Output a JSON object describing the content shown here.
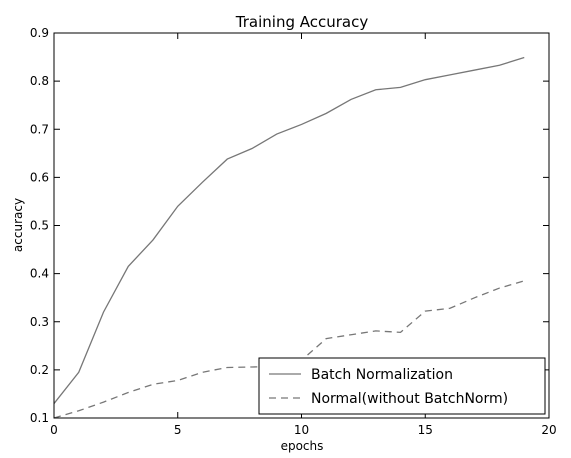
{
  "chart_data": {
    "type": "line",
    "title": "Training Accuracy",
    "xlabel": "epochs",
    "ylabel": "accuracy",
    "xlim": [
      0,
      20
    ],
    "ylim": [
      0.1,
      0.9
    ],
    "xticks": [
      0,
      5,
      10,
      15,
      20
    ],
    "xtick_labels": [
      "0",
      "5",
      "10",
      "15",
      "20"
    ],
    "yticks": [
      0.1,
      0.2,
      0.3,
      0.4,
      0.5,
      0.6,
      0.7,
      0.8,
      0.9
    ],
    "ytick_labels": [
      "0.1",
      "0.2",
      "0.3",
      "0.4",
      "0.5",
      "0.6",
      "0.7",
      "0.8",
      "0.9"
    ],
    "grid": false,
    "legend_position": "bottom-right",
    "x": [
      0,
      1,
      2,
      3,
      4,
      5,
      6,
      7,
      8,
      9,
      10,
      11,
      12,
      13,
      14,
      15,
      16,
      17,
      18,
      19
    ],
    "series": [
      {
        "name": "Batch Normalization",
        "style": "solid",
        "color": "#777777",
        "values": [
          0.13,
          0.195,
          0.32,
          0.415,
          0.47,
          0.54,
          0.59,
          0.638,
          0.66,
          0.69,
          0.71,
          0.733,
          0.762,
          0.782,
          0.787,
          0.803,
          0.813,
          0.823,
          0.833,
          0.849
        ]
      },
      {
        "name": "Normal(without BatchNorm)",
        "style": "dashed",
        "color": "#777777",
        "values": [
          0.1,
          0.115,
          0.133,
          0.153,
          0.17,
          0.178,
          0.195,
          0.205,
          0.206,
          0.207,
          0.22,
          0.265,
          0.273,
          0.281,
          0.278,
          0.322,
          0.328,
          0.35,
          0.37,
          0.385
        ]
      }
    ]
  }
}
